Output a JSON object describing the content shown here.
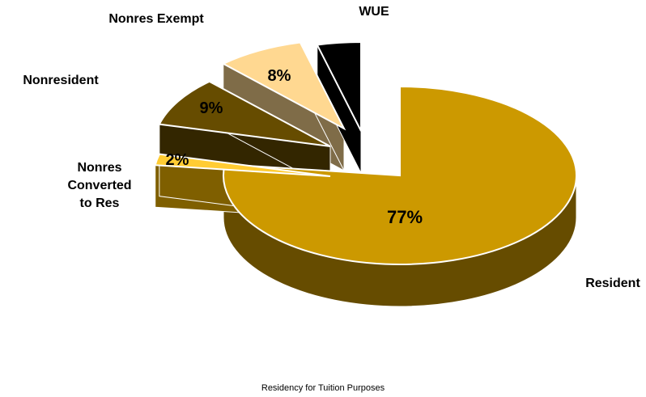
{
  "chart_data": {
    "type": "pie",
    "title": "",
    "caption": "Residency for Tuition Purposes",
    "slices": [
      {
        "label": "Resident",
        "value": 77,
        "value_label": "77%",
        "color": "#CC9900",
        "side_color": "#664C00",
        "exploded": false
      },
      {
        "label": "Nonres\nConverted\nto Res",
        "value": 2,
        "value_label": "2%",
        "color": "#FFCC33",
        "side_color": "#7F5F00",
        "exploded": true
      },
      {
        "label": "Nonresident",
        "value": 9,
        "value_label": "9%",
        "color": "#664C00",
        "side_color": "#332600",
        "exploded": true
      },
      {
        "label": "Nonres Exempt",
        "value": 8,
        "value_label": "8%",
        "color": "#FFD891",
        "side_color": "#7F6C48",
        "exploded": true
      },
      {
        "label": "WUE",
        "value": 4,
        "value_label": "",
        "color": "#000000",
        "side_color": "#000000",
        "exploded": true
      }
    ]
  }
}
